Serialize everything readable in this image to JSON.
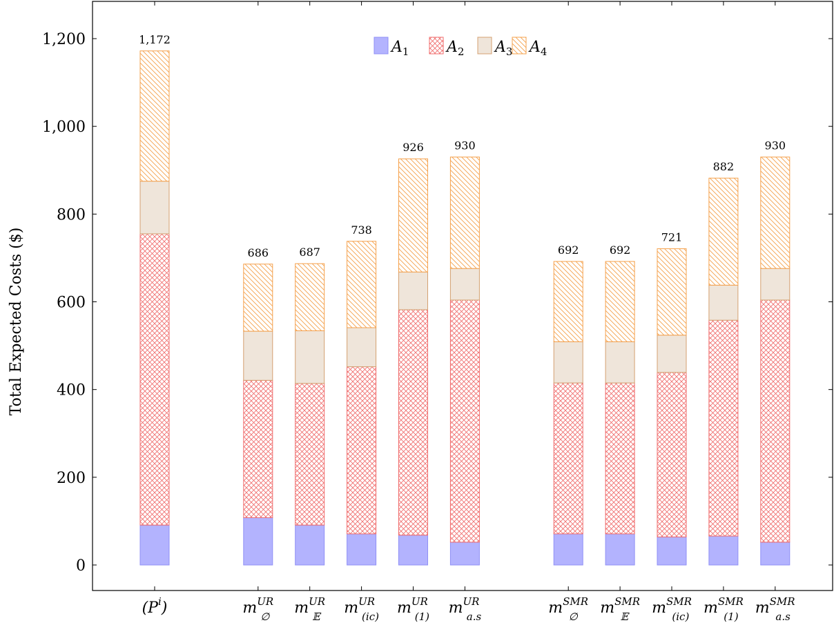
{
  "chart_data": {
    "type": "bar",
    "stacked": true,
    "ylabel": "Total Expected Costs ($)",
    "xlabel": "",
    "ylim": [
      -60,
      1280
    ],
    "yticks": [
      0,
      200,
      400,
      600,
      800,
      1000,
      1200
    ],
    "ytick_labels": [
      "0",
      "200",
      "400",
      "600",
      "800",
      "1,000",
      "1,200"
    ],
    "categories": [
      {
        "id": "P",
        "base": "(P",
        "sup": "i",
        "sub": "",
        "tail": ")",
        "slot": 0
      },
      {
        "id": "UR-empty",
        "base": "m",
        "sup": "UR",
        "sub": "∅",
        "tail": "",
        "slot": 2
      },
      {
        "id": "UR-E",
        "base": "m",
        "sup": "UR",
        "sub": "𝔼",
        "tail": "",
        "slot": 3
      },
      {
        "id": "UR-ic",
        "base": "m",
        "sup": "UR",
        "sub": "(ic)",
        "tail": "",
        "slot": 4
      },
      {
        "id": "UR-1",
        "base": "m",
        "sup": "UR",
        "sub": "(1)",
        "tail": "",
        "slot": 5
      },
      {
        "id": "UR-as",
        "base": "m",
        "sup": "UR",
        "sub": "a.s",
        "tail": "",
        "slot": 6
      },
      {
        "id": "SMR-empty",
        "base": "m",
        "sup": "SMR",
        "sub": "∅",
        "tail": "",
        "slot": 8
      },
      {
        "id": "SMR-E",
        "base": "m",
        "sup": "SMR",
        "sub": "𝔼",
        "tail": "",
        "slot": 9
      },
      {
        "id": "SMR-ic",
        "base": "m",
        "sup": "SMR",
        "sub": "(ic)",
        "tail": "",
        "slot": 10
      },
      {
        "id": "SMR-1",
        "base": "m",
        "sup": "SMR",
        "sub": "(1)",
        "tail": "",
        "slot": 11
      },
      {
        "id": "SMR-as",
        "base": "m",
        "sup": "SMR",
        "sub": "a.s",
        "tail": "",
        "slot": 12
      }
    ],
    "series": [
      {
        "name": "A",
        "sub": "1",
        "fill": "#b3b3fe",
        "stroke": "#8f8ff5",
        "pattern": "solid",
        "values": [
          91,
          108,
          91,
          71,
          68,
          52,
          71,
          71,
          64,
          66,
          52
        ]
      },
      {
        "name": "A",
        "sub": "2",
        "fill": "#ffffff",
        "stroke": "#f06a6a",
        "pattern": "crosshatch",
        "values": [
          664,
          313,
          323,
          381,
          514,
          552,
          344,
          344,
          375,
          492,
          552
        ]
      },
      {
        "name": "A",
        "sub": "3",
        "fill": "#efe5da",
        "stroke": "#d4a070",
        "pattern": "solid",
        "values": [
          120,
          112,
          120,
          89,
          86,
          72,
          94,
          94,
          85,
          80,
          72
        ]
      },
      {
        "name": "A",
        "sub": "4",
        "fill": "#ffffff",
        "stroke": "#f5a04a",
        "pattern": "diagonal",
        "values": [
          297,
          153,
          153,
          197,
          258,
          254,
          183,
          183,
          197,
          244,
          254
        ]
      }
    ],
    "totals": [
      "1,172",
      "686",
      "687",
      "738",
      "926",
      "930",
      "692",
      "692",
      "721",
      "882",
      "930"
    ],
    "legend": {
      "placement": "top-center",
      "entries": [
        "A1",
        "A2",
        "A3",
        "A4"
      ]
    },
    "grid": false
  }
}
